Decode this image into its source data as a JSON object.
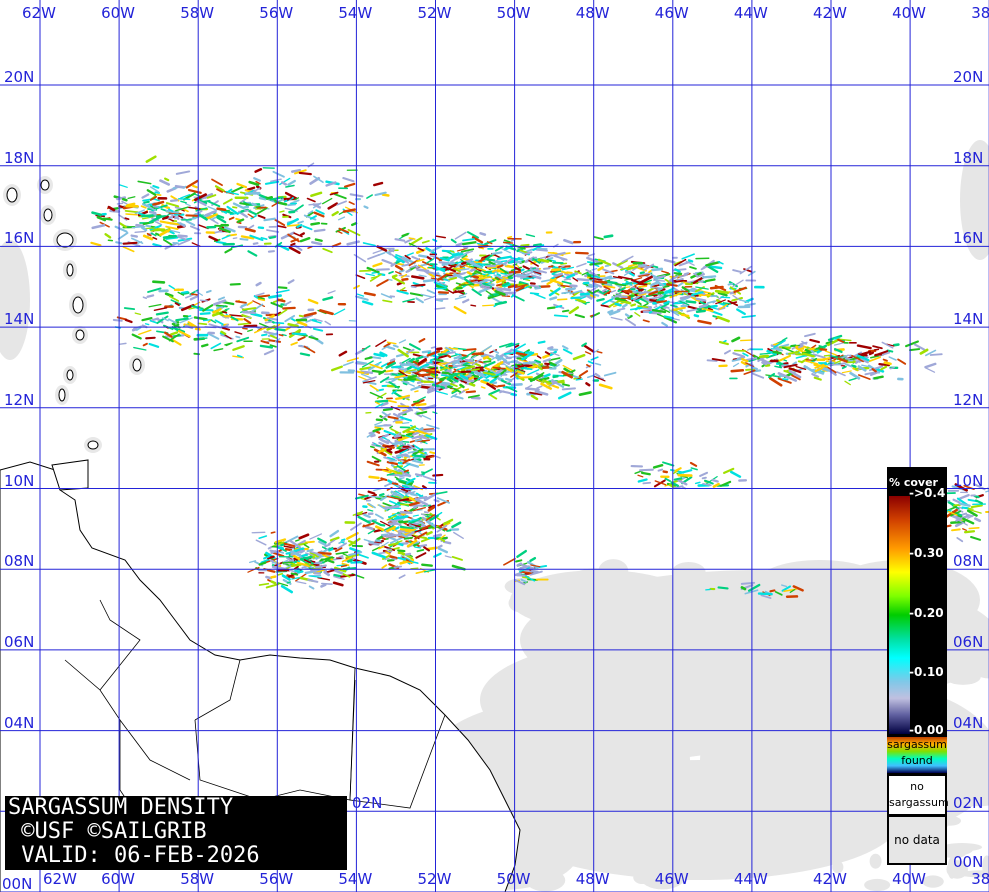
{
  "title": {
    "line1": "SARGASSUM DENSITY",
    "line2": " ©USF ©SAILGRIB",
    "line3": " VALID: 06-FEB-2026"
  },
  "grid": {
    "longitudes": [
      "62W",
      "60W",
      "58W",
      "56W",
      "54W",
      "52W",
      "50W",
      "48W",
      "46W",
      "44W",
      "42W",
      "40W",
      "38"
    ],
    "latitudes": [
      "20N",
      "18N",
      "16N",
      "14N",
      "12N",
      "10N",
      "08N",
      "06N",
      "04N",
      "02N",
      "00N"
    ],
    "line_color": "#2323d8"
  },
  "legend": {
    "title": "% cover",
    "ticks": [
      "->0.4",
      "-0.30",
      "-0.20",
      "-0.10",
      "-0.00"
    ],
    "found_label": "sargassum found",
    "no_sargassum_label": "no sargassum",
    "no_data_label": "no data",
    "no_data_color": "#e6e6e6"
  }
}
